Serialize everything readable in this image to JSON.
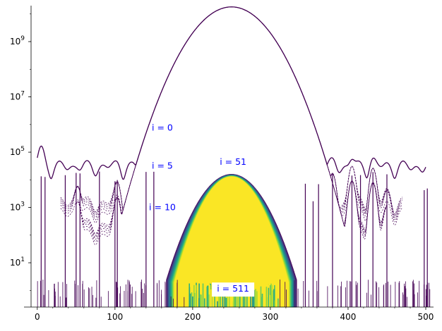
{
  "chart_data": {
    "type": "line",
    "title": "",
    "xlabel": "",
    "ylabel": "",
    "xlim": [
      -8,
      510
    ],
    "ylim": [
      0.25,
      20000000000
    ],
    "y_scale": "log",
    "grid": false,
    "x_ticks": [
      {
        "value": 0,
        "label": "0"
      },
      {
        "value": 100,
        "label": "100"
      },
      {
        "value": 200,
        "label": "200"
      },
      {
        "value": 300,
        "label": "300"
      },
      {
        "value": 400,
        "label": "400"
      },
      {
        "value": 500,
        "label": "500"
      }
    ],
    "y_ticks": [
      {
        "value": 10,
        "base": "10",
        "exp": "1"
      },
      {
        "value": 1000,
        "base": "10",
        "exp": "3"
      },
      {
        "value": 100000,
        "base": "10",
        "exp": "5"
      },
      {
        "value": 10000000,
        "base": "10",
        "exp": "7"
      },
      {
        "value": 1000000000,
        "base": "10",
        "exp": "9"
      }
    ],
    "colormap": "viridis",
    "colors": {
      "early": "#440154",
      "mid": "#21918c",
      "late": "#fde725",
      "annotation": "#0000ff"
    },
    "main_peak": {
      "center": 250,
      "initial_peak": 18000000000,
      "final_peak": 16000,
      "width_initial": 24,
      "width_final": 20
    },
    "series": [
      {
        "iteration": 0,
        "peak": 18000000000,
        "floor_level": 50000,
        "noise_extent": 250
      },
      {
        "iteration": 5,
        "peak": 18000000000,
        "floor_level": 2500,
        "noise_extent": 220
      },
      {
        "iteration": 10,
        "peak": 18000000000,
        "floor_level": 400,
        "noise_extent": 200
      },
      {
        "iteration": 51,
        "peak": 16000,
        "floor_level": 0,
        "noise_extent": 60
      },
      {
        "iteration": 511,
        "peak": 16000,
        "floor_level": 0,
        "noise_extent": 50
      }
    ],
    "side_features": [
      {
        "x": 5,
        "y": 130000
      },
      {
        "x": 52,
        "y": 5000
      },
      {
        "x": 103,
        "y": 7000
      },
      {
        "x": 345,
        "y": 30000
      },
      {
        "x": 380,
        "y": 15000
      },
      {
        "x": 405,
        "y": 30000
      },
      {
        "x": 432,
        "y": 25000
      },
      {
        "x": 450,
        "y": 3000
      },
      {
        "x": 498,
        "y": 500
      }
    ],
    "annotations": [
      {
        "text": "i = 0",
        "x": 161,
        "y": 600000
      },
      {
        "text": "i = 5",
        "x": 161,
        "y": 25000
      },
      {
        "text": "i = 10",
        "x": 161,
        "y": 800
      },
      {
        "text": "i = 51",
        "x": 252,
        "y": 35000
      },
      {
        "text": "i = 511",
        "x": 252,
        "y": 0.9
      }
    ]
  }
}
